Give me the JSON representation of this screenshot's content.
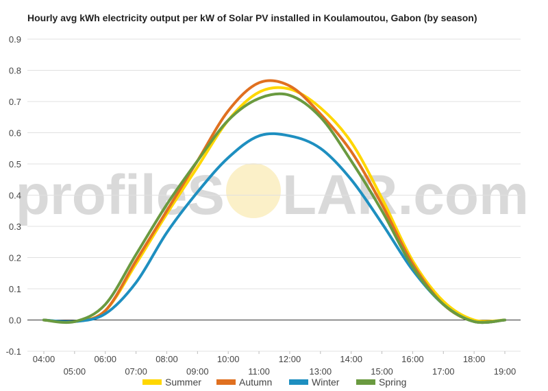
{
  "watermark": {
    "text_left": "profileS",
    "text_right": "LAR.com",
    "sun_color": "#fbf0c8"
  },
  "chart_data": {
    "type": "line",
    "title": "Hourly avg kWh electricity output per kW of Solar PV installed in Koulamoutou, Gabon (by season)",
    "xlabel": "",
    "ylabel": "",
    "x": [
      4,
      5,
      6,
      7,
      8,
      9,
      10,
      11,
      12,
      13,
      14,
      15,
      16,
      17,
      18,
      19
    ],
    "xticks": [
      "04:00",
      "05:00",
      "06:00",
      "07:00",
      "08:00",
      "09:00",
      "10:00",
      "11:00",
      "12:00",
      "13:00",
      "14:00",
      "15:00",
      "16:00",
      "17:00",
      "18:00",
      "19:00"
    ],
    "ylim": [
      -0.1,
      0.9
    ],
    "yticks": [
      "-0.1",
      "0.0",
      "0.1",
      "0.2",
      "0.3",
      "0.4",
      "0.5",
      "0.6",
      "0.7",
      "0.8",
      "0.9"
    ],
    "grid": true,
    "legend": "bottom",
    "series": [
      {
        "name": "Summer",
        "color": "#ffd700",
        "values": [
          0.0,
          -0.005,
          0.03,
          0.18,
          0.34,
          0.49,
          0.64,
          0.73,
          0.74,
          0.68,
          0.57,
          0.39,
          0.19,
          0.06,
          0.0,
          0.0
        ]
      },
      {
        "name": "Autumn",
        "color": "#e07020",
        "values": [
          0.0,
          -0.005,
          0.03,
          0.19,
          0.35,
          0.51,
          0.67,
          0.76,
          0.75,
          0.66,
          0.54,
          0.37,
          0.18,
          0.05,
          -0.005,
          0.0
        ]
      },
      {
        "name": "Winter",
        "color": "#1e8fc0",
        "values": [
          0.0,
          -0.005,
          0.02,
          0.12,
          0.28,
          0.41,
          0.52,
          0.59,
          0.59,
          0.55,
          0.45,
          0.31,
          0.16,
          0.05,
          -0.005,
          0.0
        ]
      },
      {
        "name": "Spring",
        "color": "#6a9a40",
        "values": [
          0.0,
          -0.005,
          0.05,
          0.21,
          0.37,
          0.51,
          0.64,
          0.71,
          0.72,
          0.65,
          0.51,
          0.35,
          0.17,
          0.05,
          -0.005,
          0.0
        ]
      }
    ]
  }
}
